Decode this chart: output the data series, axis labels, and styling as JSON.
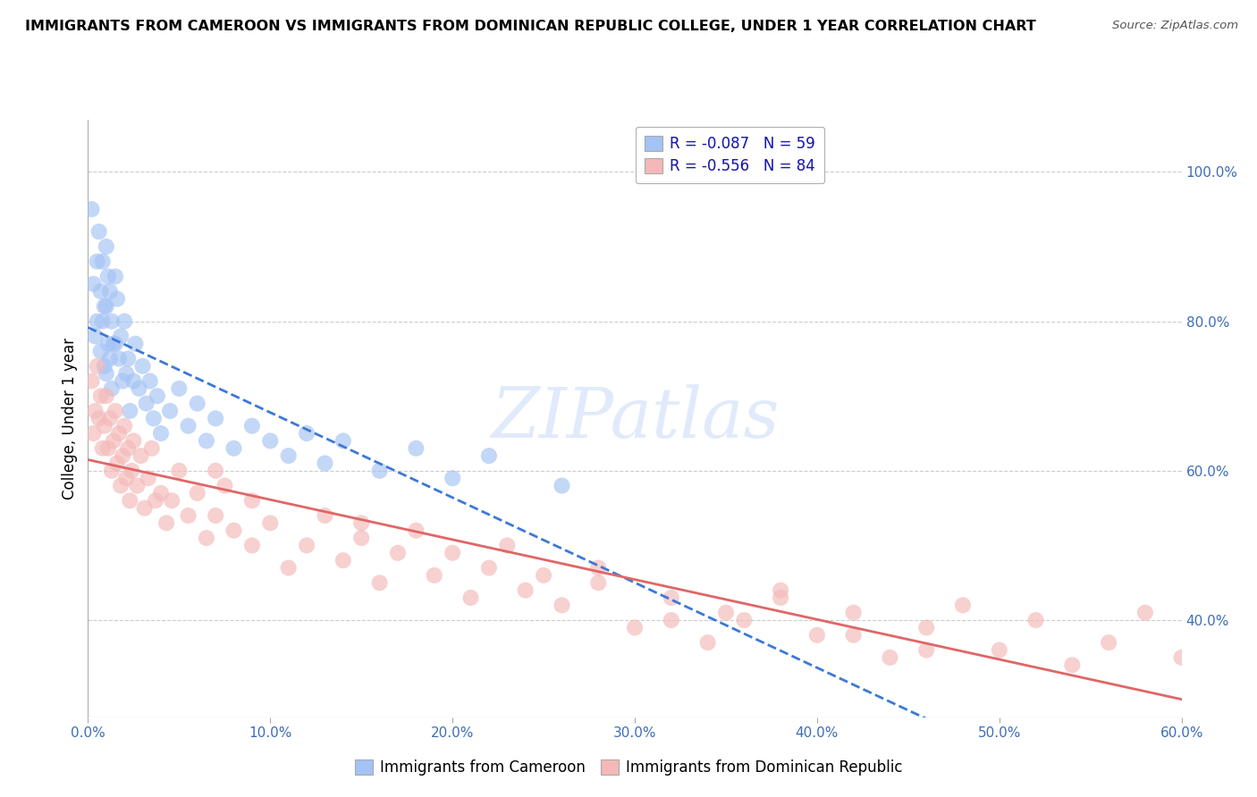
{
  "title": "IMMIGRANTS FROM CAMEROON VS IMMIGRANTS FROM DOMINICAN REPUBLIC COLLEGE, UNDER 1 YEAR CORRELATION CHART",
  "source": "Source: ZipAtlas.com",
  "ylabel": "College, Under 1 year",
  "right_yticks": [
    "40.0%",
    "60.0%",
    "80.0%",
    "100.0%"
  ],
  "right_ytick_vals": [
    0.4,
    0.6,
    0.8,
    1.0
  ],
  "legend1_r": "-0.087",
  "legend1_n": "59",
  "legend2_r": "-0.556",
  "legend2_n": "84",
  "blue_color": "#a4c2f4",
  "pink_color": "#f4b8b8",
  "blue_line_color": "#3c78d8",
  "pink_line_color": "#e06666",
  "watermark_text": "ZIPatlas",
  "watermark_color": "#c9daf8",
  "xlim": [
    0.0,
    0.6
  ],
  "ylim": [
    0.27,
    1.07
  ],
  "blue_scatter_x": [
    0.002,
    0.003,
    0.004,
    0.005,
    0.005,
    0.006,
    0.007,
    0.007,
    0.008,
    0.008,
    0.009,
    0.009,
    0.01,
    0.01,
    0.01,
    0.011,
    0.011,
    0.012,
    0.012,
    0.013,
    0.013,
    0.014,
    0.015,
    0.015,
    0.016,
    0.017,
    0.018,
    0.019,
    0.02,
    0.021,
    0.022,
    0.023,
    0.025,
    0.026,
    0.028,
    0.03,
    0.032,
    0.034,
    0.036,
    0.038,
    0.04,
    0.045,
    0.05,
    0.055,
    0.06,
    0.065,
    0.07,
    0.08,
    0.09,
    0.1,
    0.11,
    0.12,
    0.13,
    0.14,
    0.16,
    0.18,
    0.2,
    0.22,
    0.26
  ],
  "blue_scatter_y": [
    0.95,
    0.85,
    0.78,
    0.88,
    0.8,
    0.92,
    0.84,
    0.76,
    0.88,
    0.8,
    0.82,
    0.74,
    0.9,
    0.82,
    0.73,
    0.86,
    0.77,
    0.84,
    0.75,
    0.8,
    0.71,
    0.77,
    0.86,
    0.77,
    0.83,
    0.75,
    0.78,
    0.72,
    0.8,
    0.73,
    0.75,
    0.68,
    0.72,
    0.77,
    0.71,
    0.74,
    0.69,
    0.72,
    0.67,
    0.7,
    0.65,
    0.68,
    0.71,
    0.66,
    0.69,
    0.64,
    0.67,
    0.63,
    0.66,
    0.64,
    0.62,
    0.65,
    0.61,
    0.64,
    0.6,
    0.63,
    0.59,
    0.62,
    0.58
  ],
  "pink_scatter_x": [
    0.002,
    0.003,
    0.004,
    0.005,
    0.006,
    0.007,
    0.008,
    0.009,
    0.01,
    0.011,
    0.012,
    0.013,
    0.014,
    0.015,
    0.016,
    0.017,
    0.018,
    0.019,
    0.02,
    0.021,
    0.022,
    0.023,
    0.024,
    0.025,
    0.027,
    0.029,
    0.031,
    0.033,
    0.035,
    0.037,
    0.04,
    0.043,
    0.046,
    0.05,
    0.055,
    0.06,
    0.065,
    0.07,
    0.075,
    0.08,
    0.09,
    0.1,
    0.11,
    0.12,
    0.13,
    0.14,
    0.15,
    0.16,
    0.17,
    0.18,
    0.19,
    0.2,
    0.21,
    0.22,
    0.23,
    0.24,
    0.26,
    0.28,
    0.3,
    0.32,
    0.34,
    0.36,
    0.38,
    0.4,
    0.42,
    0.44,
    0.46,
    0.48,
    0.5,
    0.52,
    0.54,
    0.56,
    0.58,
    0.6,
    0.38,
    0.28,
    0.32,
    0.42,
    0.46,
    0.35,
    0.15,
    0.25,
    0.07,
    0.09
  ],
  "pink_scatter_y": [
    0.72,
    0.65,
    0.68,
    0.74,
    0.67,
    0.7,
    0.63,
    0.66,
    0.7,
    0.63,
    0.67,
    0.6,
    0.64,
    0.68,
    0.61,
    0.65,
    0.58,
    0.62,
    0.66,
    0.59,
    0.63,
    0.56,
    0.6,
    0.64,
    0.58,
    0.62,
    0.55,
    0.59,
    0.63,
    0.56,
    0.57,
    0.53,
    0.56,
    0.6,
    0.54,
    0.57,
    0.51,
    0.54,
    0.58,
    0.52,
    0.5,
    0.53,
    0.47,
    0.5,
    0.54,
    0.48,
    0.51,
    0.45,
    0.49,
    0.52,
    0.46,
    0.49,
    0.43,
    0.47,
    0.5,
    0.44,
    0.42,
    0.45,
    0.39,
    0.43,
    0.37,
    0.4,
    0.44,
    0.38,
    0.41,
    0.35,
    0.39,
    0.42,
    0.36,
    0.4,
    0.34,
    0.37,
    0.41,
    0.35,
    0.43,
    0.47,
    0.4,
    0.38,
    0.36,
    0.41,
    0.53,
    0.46,
    0.6,
    0.56
  ]
}
